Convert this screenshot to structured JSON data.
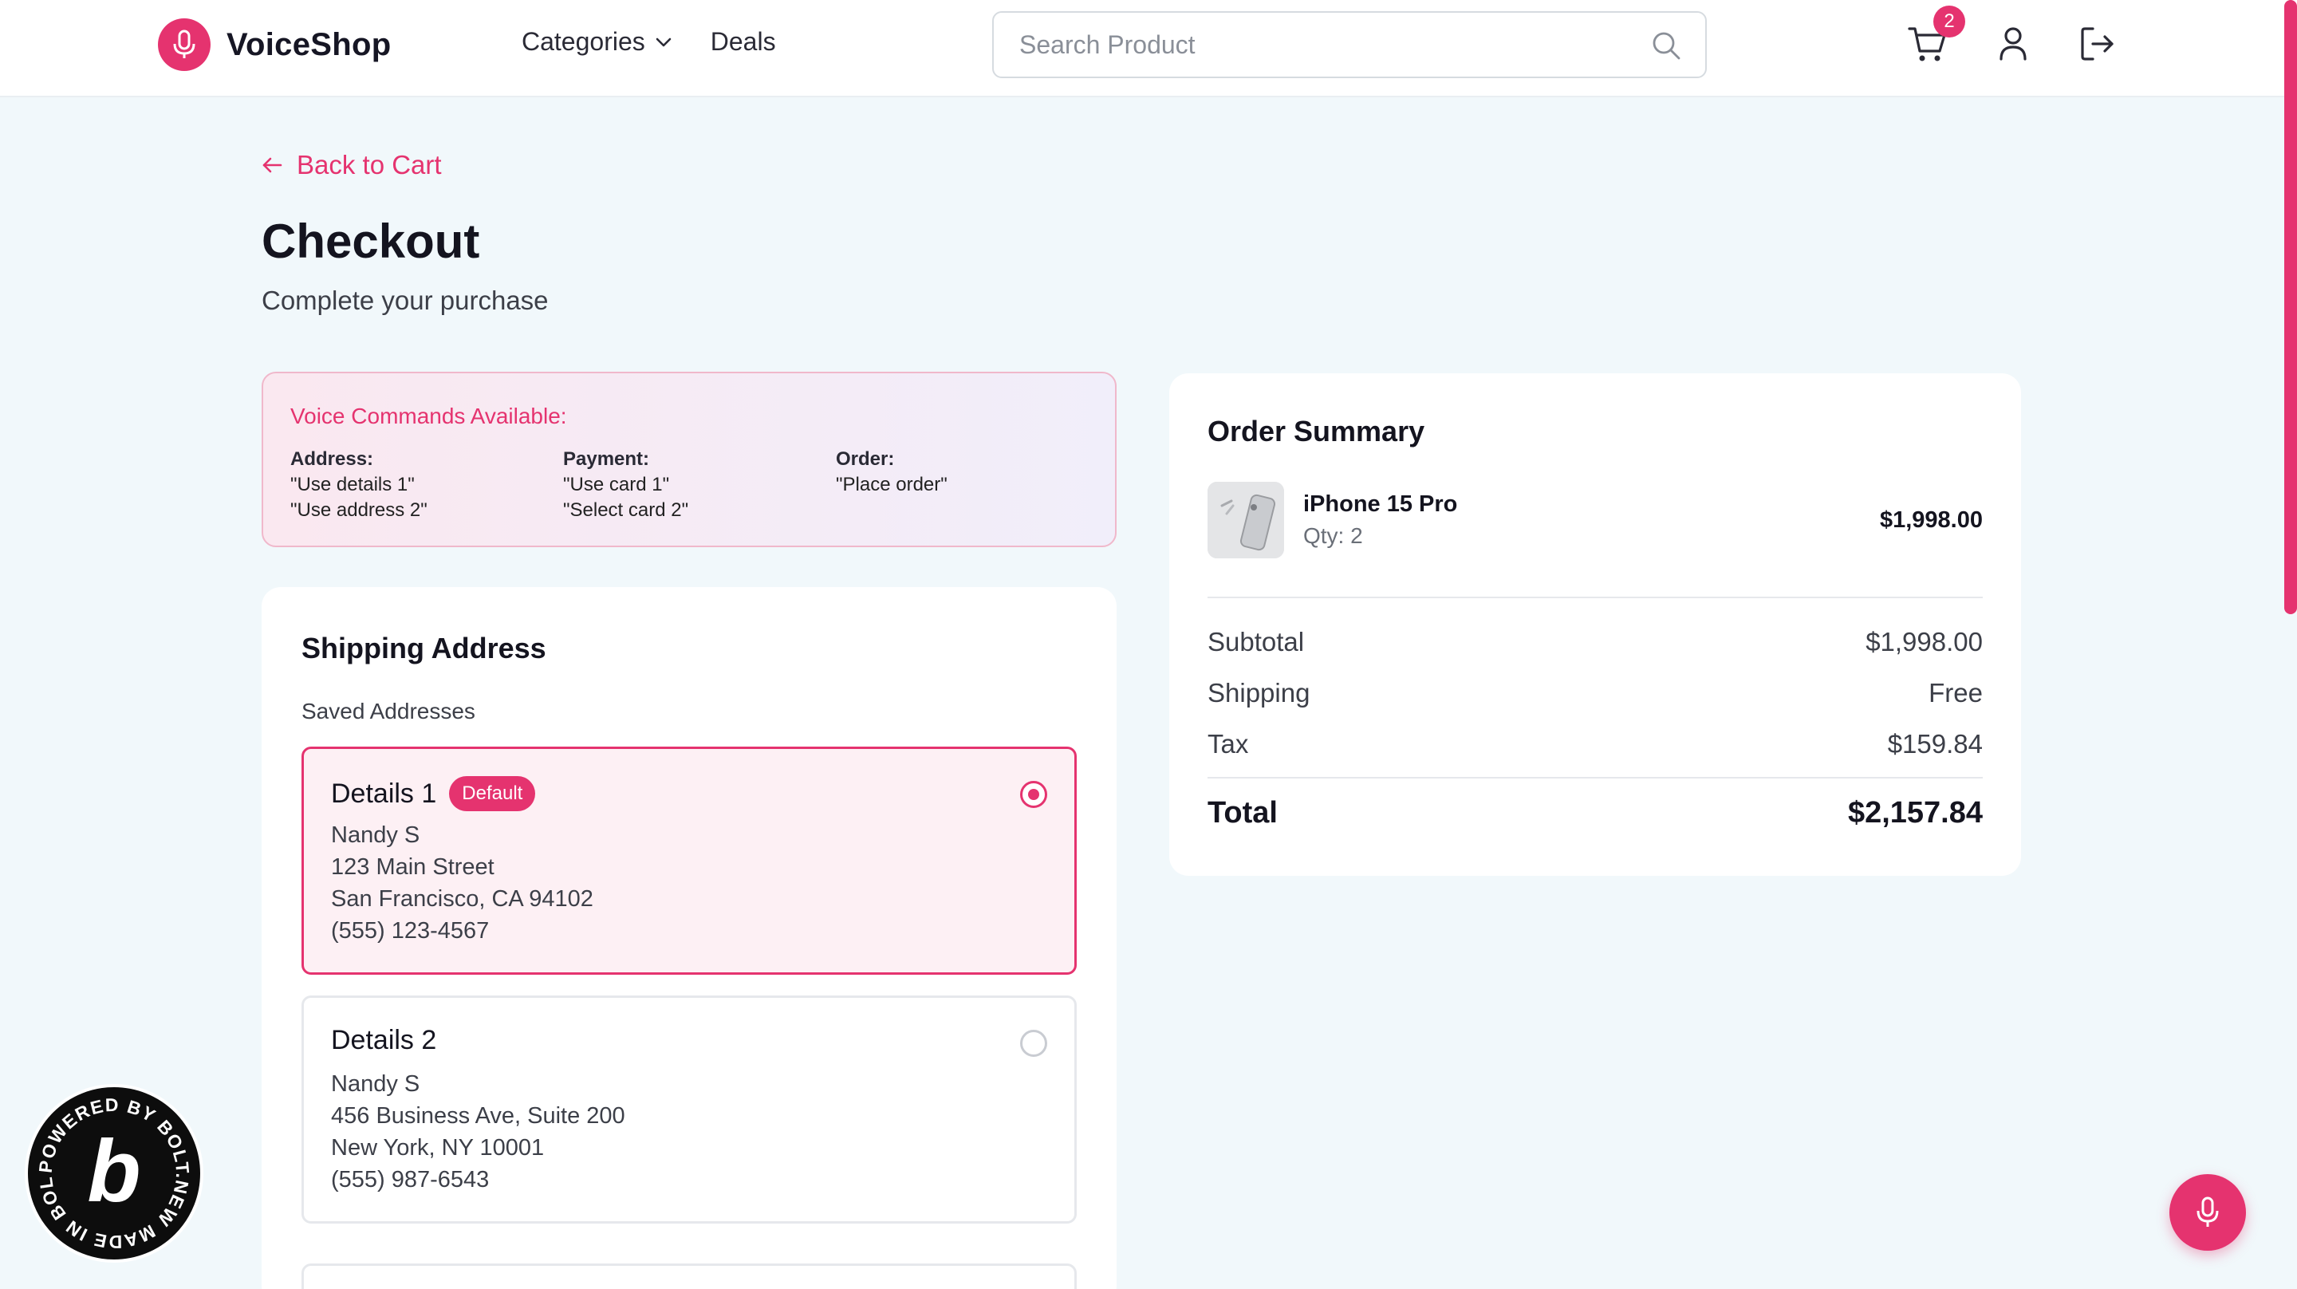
{
  "header": {
    "brand": "VoiceShop",
    "nav": [
      {
        "label": "Categories",
        "has_dropdown": true
      },
      {
        "label": "Deals",
        "has_dropdown": false
      }
    ],
    "search_placeholder": "Search Product",
    "cart_count": "2",
    "icons": [
      "mic-icon",
      "search-icon",
      "cart-icon",
      "user-icon",
      "logout-icon"
    ]
  },
  "page": {
    "back_label": "Back to Cart",
    "title": "Checkout",
    "subtitle": "Complete your purchase"
  },
  "voice_commands": {
    "title": "Voice Commands Available:",
    "columns": [
      {
        "heading": "Address:",
        "lines": [
          "\"Use details 1\"",
          "\"Use address 2\""
        ]
      },
      {
        "heading": "Payment:",
        "lines": [
          "\"Use card 1\"",
          "\"Select card 2\""
        ]
      },
      {
        "heading": "Order:",
        "lines": [
          "\"Place order\""
        ]
      }
    ]
  },
  "shipping": {
    "title": "Shipping Address",
    "saved_label": "Saved Addresses",
    "addresses": [
      {
        "name": "Details 1",
        "badge": "Default",
        "selected": true,
        "lines": [
          "Nandy S",
          "123 Main Street",
          "San Francisco, CA 94102",
          "(555) 123-4567"
        ]
      },
      {
        "name": "Details 2",
        "badge": "",
        "selected": false,
        "lines": [
          "Nandy S",
          "456 Business Ave, Suite 200",
          "New York, NY 10001",
          "(555) 987-6543"
        ]
      }
    ]
  },
  "summary": {
    "title": "Order Summary",
    "item": {
      "name": "iPhone 15 Pro",
      "qty": "Qty: 2",
      "price": "$1,998.00"
    },
    "rows": [
      {
        "label": "Subtotal",
        "value": "$1,998.00"
      },
      {
        "label": "Shipping",
        "value": "Free"
      },
      {
        "label": "Tax",
        "value": "$159.84"
      }
    ],
    "total": {
      "label": "Total",
      "value": "$2,157.84"
    }
  },
  "badge": {
    "text": "POWERED BY BOLT.NEW MADE IN BOLT.NEW "
  },
  "colors": {
    "accent": "#e5336f",
    "background": "#f1f8fb"
  }
}
